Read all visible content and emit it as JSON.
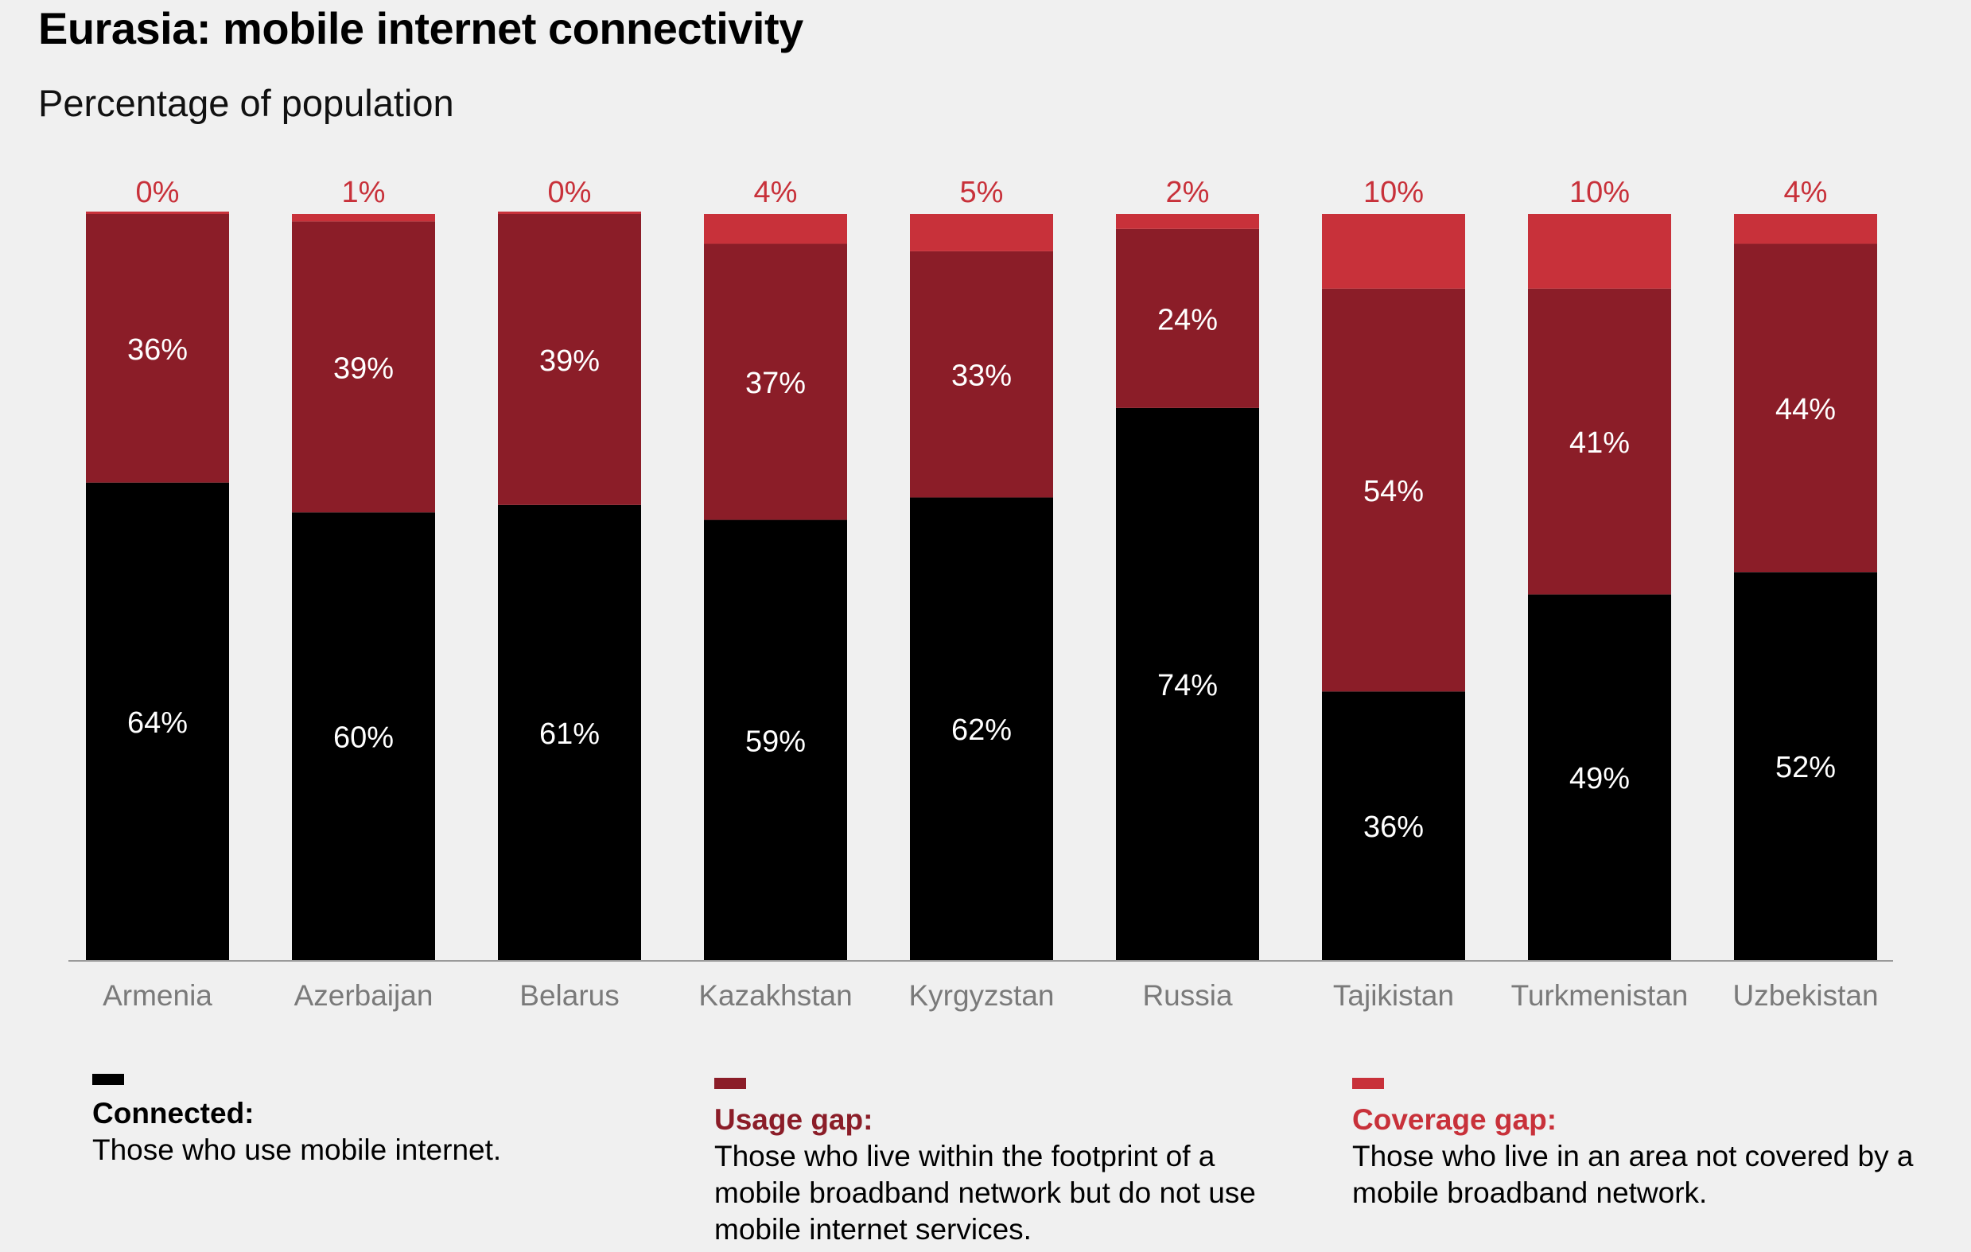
{
  "title": "Eurasia: mobile internet connectivity",
  "subtitle": "Percentage of population",
  "colors": {
    "connected": "#000000",
    "usage_gap": "#8b1d28",
    "coverage_gap": "#c8313a",
    "bar_label": "#ffffff",
    "top_label": "#c8313a",
    "axis": "#9a9a9a",
    "category": "#7a7a7a"
  },
  "legend": {
    "connected": {
      "heading": "Connected:",
      "description": "Those who use mobile internet."
    },
    "usage_gap": {
      "heading": "Usage gap:",
      "description": "Those who live within the footprint of a mobile broadband network but do not use mobile internet services."
    },
    "coverage_gap": {
      "heading": "Coverage gap:",
      "description": "Those who live in an area not covered by a mobile broadband network."
    }
  },
  "chart_data": {
    "type": "bar",
    "stacked": true,
    "categories": [
      "Armenia",
      "Azerbaijan",
      "Belarus",
      "Kazakhstan",
      "Kyrgyzstan",
      "Russia",
      "Tajikistan",
      "Turkmenistan",
      "Uzbekistan"
    ],
    "series": [
      {
        "name": "Connected",
        "values": [
          64,
          60,
          61,
          59,
          62,
          74,
          36,
          49,
          52
        ]
      },
      {
        "name": "Usage gap",
        "values": [
          36,
          39,
          39,
          37,
          33,
          24,
          54,
          41,
          44
        ]
      },
      {
        "name": "Coverage gap",
        "values": [
          0,
          1,
          0,
          4,
          5,
          2,
          10,
          10,
          4
        ]
      }
    ],
    "labels": {
      "connected": [
        "64%",
        "60%",
        "61%",
        "59%",
        "62%",
        "74%",
        "36%",
        "49%",
        "52%"
      ],
      "usage_gap": [
        "36%",
        "39%",
        "39%",
        "37%",
        "33%",
        "24%",
        "54%",
        "41%",
        "44%"
      ],
      "coverage_gap": [
        "0%",
        "1%",
        "0%",
        "4%",
        "5%",
        "2%",
        "10%",
        "10%",
        "4%"
      ]
    },
    "ylim": [
      0,
      100
    ],
    "grid": false,
    "legend_position": "bottom"
  }
}
